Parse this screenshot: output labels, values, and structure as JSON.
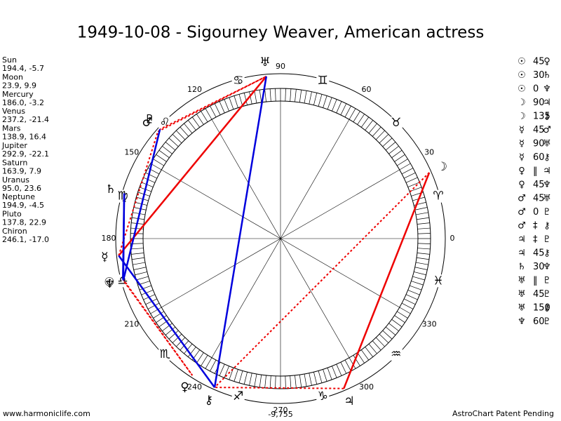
{
  "header": {
    "title": "1949-10-08 - Sigourney Weaver, American actress"
  },
  "planets": [
    {
      "name": "Sun",
      "glyph": "☉",
      "position": "194.4, -5.7"
    },
    {
      "name": "Moon",
      "glyph": "☽",
      "position": "23.9, 9.9"
    },
    {
      "name": "Mercury",
      "glyph": "☿",
      "position": "186.0, -3.2"
    },
    {
      "name": "Venus",
      "glyph": "♀",
      "position": "237.2, -21.4"
    },
    {
      "name": "Mars",
      "glyph": "♂",
      "position": "138.9, 16.4"
    },
    {
      "name": "Jupiter",
      "glyph": "♃",
      "position": "292.9, -22.1"
    },
    {
      "name": "Saturn",
      "glyph": "♄",
      "position": "163.9, 7.9"
    },
    {
      "name": "Uranus",
      "glyph": "♅",
      "position": "95.0, 23.6"
    },
    {
      "name": "Neptune",
      "glyph": "♆",
      "position": "194.9, -4.5"
    },
    {
      "name": "Pluto",
      "glyph": "♇",
      "position": "137.8, 22.9"
    },
    {
      "name": "Chiron",
      "glyph": "⚷",
      "position": "246.1, -17.0"
    }
  ],
  "aspects": [
    {
      "from": "☉",
      "aspect": "45",
      "to": "♀"
    },
    {
      "from": "☉",
      "aspect": "30",
      "to": "♄"
    },
    {
      "from": "☉",
      "aspect": "0",
      "to": "♆"
    },
    {
      "from": "☽",
      "aspect": "90",
      "to": "♃"
    },
    {
      "from": "☽",
      "aspect": "135",
      "to": "⚷"
    },
    {
      "from": "☿",
      "aspect": "45",
      "to": "♂"
    },
    {
      "from": "☿",
      "aspect": "90",
      "to": "♅"
    },
    {
      "from": "☿",
      "aspect": "60",
      "to": "⚷"
    },
    {
      "from": "♀",
      "aspect": "‖",
      "to": "♃"
    },
    {
      "from": "♀",
      "aspect": "45",
      "to": "♆"
    },
    {
      "from": "♂",
      "aspect": "45",
      "to": "♅"
    },
    {
      "from": "♂",
      "aspect": "0",
      "to": "♇"
    },
    {
      "from": "♂",
      "aspect": "‡",
      "to": "⚷"
    },
    {
      "from": "♃",
      "aspect": "‡",
      "to": "♇"
    },
    {
      "from": "♃",
      "aspect": "45",
      "to": "⚷"
    },
    {
      "from": "♄",
      "aspect": "30",
      "to": "♆"
    },
    {
      "from": "♅",
      "aspect": "‖",
      "to": "♇"
    },
    {
      "from": "♅",
      "aspect": "45",
      "to": "♇"
    },
    {
      "from": "♅",
      "aspect": "150",
      "to": "⚷"
    },
    {
      "from": "♆",
      "aspect": "60",
      "to": "♇"
    }
  ],
  "signs": [
    "♈",
    "♉",
    "♊",
    "♋",
    "♌",
    "♍",
    "♎",
    "♏",
    "♐",
    "♑",
    "♒",
    "♓"
  ],
  "degree_labels": [
    "0",
    "30",
    "60",
    "90",
    "120",
    "150",
    "180",
    "210",
    "240",
    "270",
    "300",
    "330"
  ],
  "center_value": "-9,755",
  "footer": {
    "left": "www.harmoniclife.com",
    "right": "AstroChart Patent Pending"
  }
}
